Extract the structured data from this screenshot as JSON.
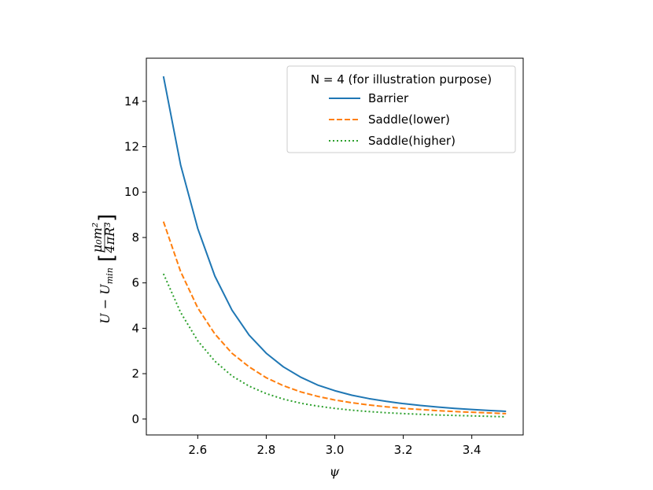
{
  "chart_data": {
    "type": "line",
    "title": "",
    "xlabel": "ψ",
    "ylabel": "U − U_min [μ0m² / 4πR³]",
    "ylabel_parts": {
      "lhs": "U − U",
      "lhs_sub": "min",
      "bracket_num": "μ₀m²",
      "bracket_den": "4πR³"
    },
    "xlim": [
      2.45,
      3.55
    ],
    "ylim": [
      -0.7,
      15.9
    ],
    "xticks": [
      2.6,
      2.8,
      3.0,
      3.2,
      3.4
    ],
    "xtick_labels": [
      "2.6",
      "2.8",
      "3.0",
      "3.2",
      "3.4"
    ],
    "yticks": [
      0,
      2,
      4,
      6,
      8,
      10,
      12,
      14
    ],
    "ytick_labels": [
      "0",
      "2",
      "4",
      "6",
      "8",
      "10",
      "12",
      "14"
    ],
    "grid": false,
    "legend": {
      "title": "N = 4 (for illustration purpose)",
      "placement": "upper right"
    },
    "series": [
      {
        "name": "Barrier",
        "color": "#1f77b4",
        "style": "solid",
        "x": [
          2.5,
          2.55,
          2.6,
          2.65,
          2.7,
          2.75,
          2.8,
          2.85,
          2.9,
          2.95,
          3.0,
          3.05,
          3.1,
          3.15,
          3.2,
          3.25,
          3.3,
          3.35,
          3.4,
          3.45,
          3.5
        ],
        "y": [
          15.1,
          11.2,
          8.4,
          6.3,
          4.8,
          3.7,
          2.9,
          2.3,
          1.85,
          1.5,
          1.25,
          1.05,
          0.9,
          0.78,
          0.68,
          0.6,
          0.53,
          0.47,
          0.42,
          0.38,
          0.34
        ]
      },
      {
        "name": "Saddle(lower)",
        "color": "#ff7f0e",
        "style": "dashed",
        "x": [
          2.5,
          2.55,
          2.6,
          2.65,
          2.7,
          2.75,
          2.8,
          2.85,
          2.9,
          2.95,
          3.0,
          3.05,
          3.1,
          3.15,
          3.2,
          3.25,
          3.3,
          3.35,
          3.4,
          3.45,
          3.5
        ],
        "y": [
          8.7,
          6.5,
          4.9,
          3.75,
          2.9,
          2.3,
          1.82,
          1.47,
          1.2,
          1.0,
          0.84,
          0.72,
          0.62,
          0.54,
          0.47,
          0.42,
          0.37,
          0.33,
          0.3,
          0.27,
          0.24
        ]
      },
      {
        "name": "Saddle(higher)",
        "color": "#2ca02c",
        "style": "dotted",
        "x": [
          2.5,
          2.55,
          2.6,
          2.65,
          2.7,
          2.75,
          2.8,
          2.85,
          2.9,
          2.95,
          3.0,
          3.05,
          3.1,
          3.15,
          3.2,
          3.25,
          3.3,
          3.35,
          3.4,
          3.45,
          3.5
        ],
        "y": [
          6.4,
          4.7,
          3.45,
          2.55,
          1.9,
          1.45,
          1.12,
          0.88,
          0.7,
          0.57,
          0.47,
          0.39,
          0.33,
          0.28,
          0.24,
          0.21,
          0.18,
          0.16,
          0.14,
          0.12,
          0.1
        ]
      }
    ]
  }
}
